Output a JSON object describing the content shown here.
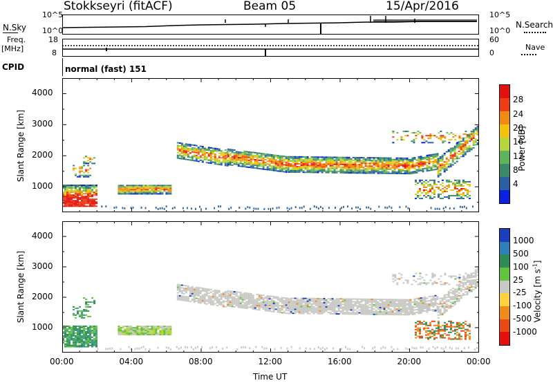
{
  "header": {
    "station": "Stokkseyri (fitACF)",
    "beam": "Beam 05",
    "date": "15/Apr/2016"
  },
  "status_panels": {
    "nsky_label": "N.Sky",
    "nsearch_label": "N.Search",
    "noise_left_ticks": [
      "10^5",
      "10^0"
    ],
    "noise_right_ticks": [
      "10^5",
      "10^0"
    ],
    "freq_label": "Freq.",
    "freq_unit": "[MHz]",
    "freq_ticks": [
      "18",
      "8"
    ],
    "nave_label": "Nave",
    "nave_ticks": [
      "60",
      "0"
    ],
    "cpid_label": "CPID",
    "cpid_text": "normal (fast) 151"
  },
  "chart_data": [
    {
      "type": "heatmap",
      "name": "power",
      "ylabel": "Slant Range [km]",
      "xlabel": "Time UT",
      "x_ticks": [
        "00:00",
        "04:00",
        "08:00",
        "12:00",
        "16:00",
        "20:00",
        "00:00"
      ],
      "y_ticks": [
        "1000",
        "2000",
        "3000",
        "4000"
      ],
      "xlim_hours": [
        0,
        24
      ],
      "ylim_km": [
        180,
        4500
      ],
      "colorbar": {
        "label": "Power [dB]",
        "tick_labels": [
          "28",
          "24",
          "20",
          "16",
          "12",
          "8",
          "4"
        ],
        "colors_bottom_to_top": [
          "#0a22e0",
          "#2b5fa6",
          "#3a8a6a",
          "#5fb35a",
          "#b5d63a",
          "#f2c20c",
          "#f08a10",
          "#ee3c14",
          "#e40f0f"
        ]
      }
    },
    {
      "type": "heatmap",
      "name": "velocity",
      "ylabel": "Slant Range [km]",
      "xlabel": "Time UT",
      "x_ticks": [
        "00:00",
        "04:00",
        "08:00",
        "12:00",
        "16:00",
        "20:00",
        "00:00"
      ],
      "y_ticks": [
        "1000",
        "2000",
        "3000",
        "4000"
      ],
      "xlim_hours": [
        0,
        24
      ],
      "ylim_km": [
        180,
        4500
      ],
      "colorbar": {
        "label": "Velocity [m s^-1]",
        "tick_labels": [
          "1000",
          "500",
          "100",
          "25",
          "-25",
          "-100",
          "-500",
          "-1000"
        ],
        "colors_top_to_bottom": [
          "#1a3fc0",
          "#2f7fb8",
          "#2e8b57",
          "#62c43d",
          "#c8c8c4",
          "#ffd23d",
          "#f08a1a",
          "#e84a16",
          "#e60f0f"
        ]
      }
    }
  ]
}
